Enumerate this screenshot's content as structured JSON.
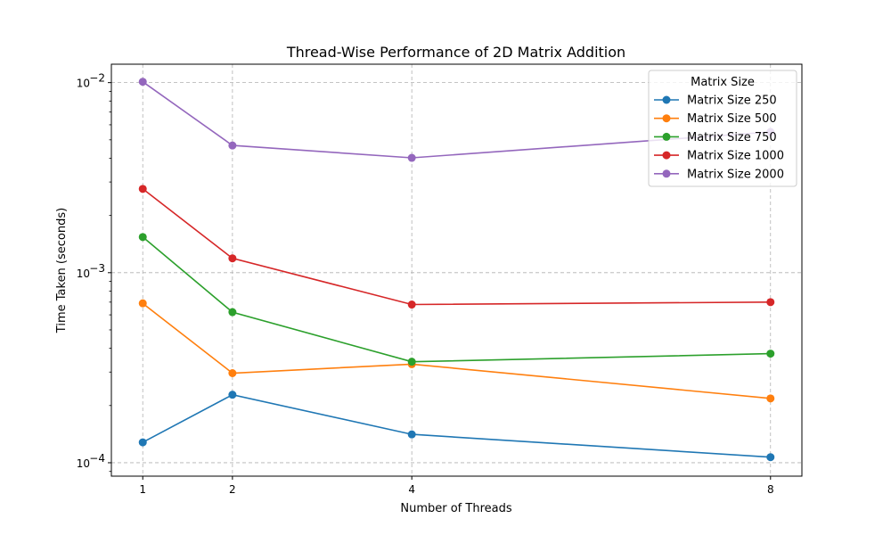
{
  "chart_data": {
    "type": "line",
    "title": "Thread-Wise Performance of 2D Matrix Addition",
    "xlabel": "Number of Threads",
    "ylabel": "Time Taken (seconds)",
    "x": [
      1,
      2,
      4,
      8
    ],
    "xticks": [
      "1",
      "2",
      "4",
      "8"
    ],
    "yscale": "log",
    "ylim": [
      8.5e-05,
      0.0125
    ],
    "yticks": [
      0.0001,
      0.001,
      0.01
    ],
    "ytick_labels": [
      {
        "base": "10",
        "exp": "−4"
      },
      {
        "base": "10",
        "exp": "−3"
      },
      {
        "base": "10",
        "exp": "−2"
      }
    ],
    "grid": true,
    "legend": {
      "title": "Matrix Size",
      "placement": "upper right"
    },
    "series": [
      {
        "name": "Matrix Size 250",
        "color": "#1f77b4",
        "values": [
          0.000128,
          0.000228,
          0.000141,
          0.000107
        ]
      },
      {
        "name": "Matrix Size 500",
        "color": "#ff7f0e",
        "values": [
          0.00069,
          0.000296,
          0.00033,
          0.000218
        ]
      },
      {
        "name": "Matrix Size 750",
        "color": "#2ca02c",
        "values": [
          0.00154,
          0.00062,
          0.00034,
          0.000375
        ]
      },
      {
        "name": "Matrix Size 1000",
        "color": "#d62728",
        "values": [
          0.00276,
          0.00119,
          0.00068,
          0.0007
        ]
      },
      {
        "name": "Matrix Size 2000",
        "color": "#9467bd",
        "values": [
          0.0101,
          0.00467,
          0.00402,
          0.0055
        ]
      }
    ]
  }
}
